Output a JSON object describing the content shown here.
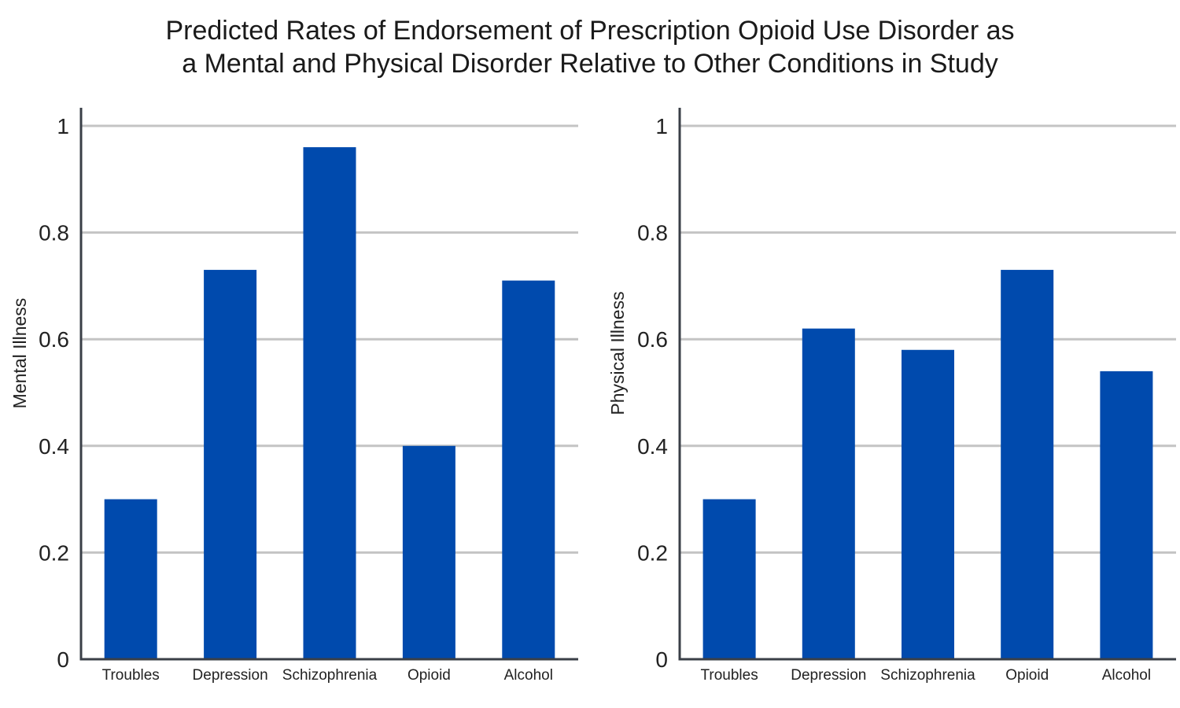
{
  "title": {
    "line1": "Predicted Rates of Endorsement of Prescription Opioid Use Disorder as",
    "line2": "a Mental and Physical Disorder Relative to Other Conditions in Study"
  },
  "colors": {
    "bar": "#004aad",
    "grid": "#c4c4c4",
    "axis": "#3a3f47"
  },
  "chart_data": [
    {
      "type": "bar",
      "categories": [
        "Troubles",
        "Depression",
        "Schizophrenia",
        "Opioid",
        "Alcohol"
      ],
      "values": [
        0.3,
        0.73,
        0.96,
        0.4,
        0.71
      ],
      "ylabel": "Mental Illness",
      "ylim": [
        0,
        1
      ],
      "yticks": [
        0,
        0.2,
        0.4,
        0.6,
        0.8,
        1
      ],
      "ytick_labels": [
        "0",
        "0.2",
        "0.4",
        "0.6",
        "0.8",
        "1"
      ],
      "grid": true
    },
    {
      "type": "bar",
      "categories": [
        "Troubles",
        "Depression",
        "Schizophrenia",
        "Opioid",
        "Alcohol"
      ],
      "values": [
        0.3,
        0.62,
        0.58,
        0.73,
        0.54
      ],
      "ylabel": "Physical Illness",
      "ylim": [
        0,
        1
      ],
      "yticks": [
        0,
        0.2,
        0.4,
        0.6,
        0.8,
        1
      ],
      "ytick_labels": [
        "0",
        "0.2",
        "0.4",
        "0.6",
        "0.8",
        "1"
      ],
      "grid": true
    }
  ]
}
